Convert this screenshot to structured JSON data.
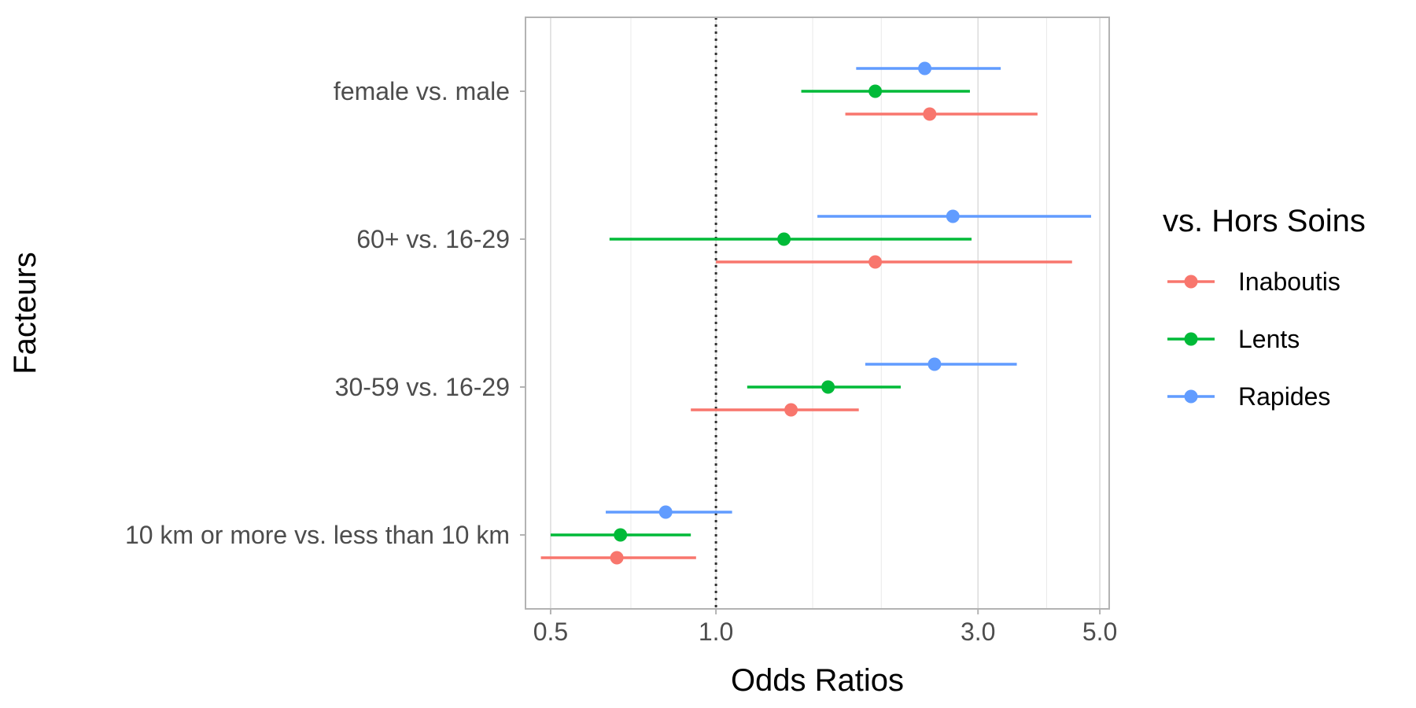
{
  "chart_data": {
    "type": "forest",
    "xlabel": "Odds Ratios",
    "ylabel": "Facteurs",
    "x_scale": "log",
    "xlim": [
      0.45,
      5.2
    ],
    "x_ticks": [
      {
        "value": 0.5,
        "label": "0.5"
      },
      {
        "value": 1.0,
        "label": "1.0"
      },
      {
        "value": 3.0,
        "label": "3.0"
      },
      {
        "value": 5.0,
        "label": "5.0"
      }
    ],
    "x_gridlines": [
      0.5,
      0.7,
      1.0,
      1.5,
      2.0,
      3.0,
      4.0,
      5.0
    ],
    "reference_line": 1.0,
    "categories": [
      "female vs. male",
      "60+ vs. 16-29",
      "30-59 vs. 16-29",
      "10 km or more vs. less than 10 km"
    ],
    "legend": {
      "title": "vs. Hors Soins",
      "position": "right"
    },
    "series": [
      {
        "name": "Inaboutis",
        "color": "#F8766D",
        "points": [
          {
            "category": "female vs. male",
            "estimate": 2.45,
            "lower": 1.72,
            "upper": 3.85
          },
          {
            "category": "60+ vs. 16-29",
            "estimate": 1.95,
            "lower": 1.0,
            "upper": 4.45
          },
          {
            "category": "30-59 vs. 16-29",
            "estimate": 1.37,
            "lower": 0.9,
            "upper": 1.82
          },
          {
            "category": "10 km or more vs. less than 10 km",
            "estimate": 0.66,
            "lower": 0.48,
            "upper": 0.92
          }
        ]
      },
      {
        "name": "Lents",
        "color": "#00BA38",
        "points": [
          {
            "category": "female vs. male",
            "estimate": 1.95,
            "lower": 1.43,
            "upper": 2.9
          },
          {
            "category": "60+ vs. 16-29",
            "estimate": 1.33,
            "lower": 0.64,
            "upper": 2.92
          },
          {
            "category": "30-59 vs. 16-29",
            "estimate": 1.6,
            "lower": 1.14,
            "upper": 2.17
          },
          {
            "category": "10 km or more vs. less than 10 km",
            "estimate": 0.67,
            "lower": 0.5,
            "upper": 0.9
          }
        ]
      },
      {
        "name": "Rapides",
        "color": "#619CFF",
        "points": [
          {
            "category": "female vs. male",
            "estimate": 2.4,
            "lower": 1.8,
            "upper": 3.3
          },
          {
            "category": "60+ vs. 16-29",
            "estimate": 2.7,
            "lower": 1.53,
            "upper": 4.82
          },
          {
            "category": "30-59 vs. 16-29",
            "estimate": 2.5,
            "lower": 1.87,
            "upper": 3.53
          },
          {
            "category": "10 km or more vs. less than 10 km",
            "estimate": 0.81,
            "lower": 0.63,
            "upper": 1.07
          }
        ]
      }
    ]
  }
}
